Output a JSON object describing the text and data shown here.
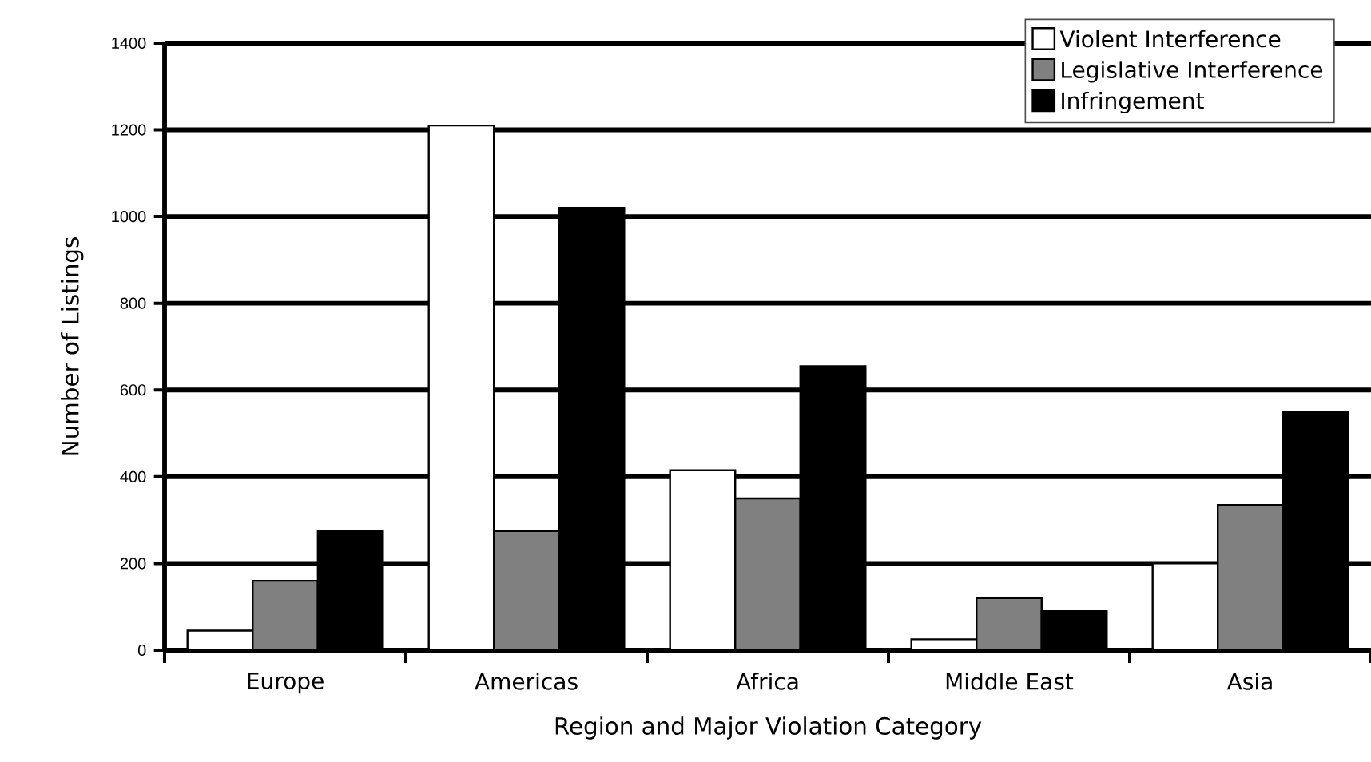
{
  "chart_data": {
    "type": "bar",
    "xlabel": "Region and Major Violation Category",
    "ylabel": "Number of Listings",
    "categories": [
      "Europe",
      "Americas",
      "Africa",
      "Middle East",
      "Asia"
    ],
    "series": [
      {
        "name": "Violent Interference",
        "color": "#ffffff",
        "values": [
          45,
          1210,
          415,
          25,
          200
        ]
      },
      {
        "name": "Legislative Interference",
        "color": "#808080",
        "values": [
          160,
          275,
          350,
          120,
          335
        ]
      },
      {
        "name": "Infringement",
        "color": "#000000",
        "values": [
          275,
          1020,
          655,
          90,
          550
        ]
      }
    ],
    "ylim": [
      0,
      1400
    ],
    "yticks": [
      0,
      200,
      400,
      600,
      800,
      1000,
      1200,
      1400
    ],
    "grid": "y",
    "legend": "top right"
  }
}
